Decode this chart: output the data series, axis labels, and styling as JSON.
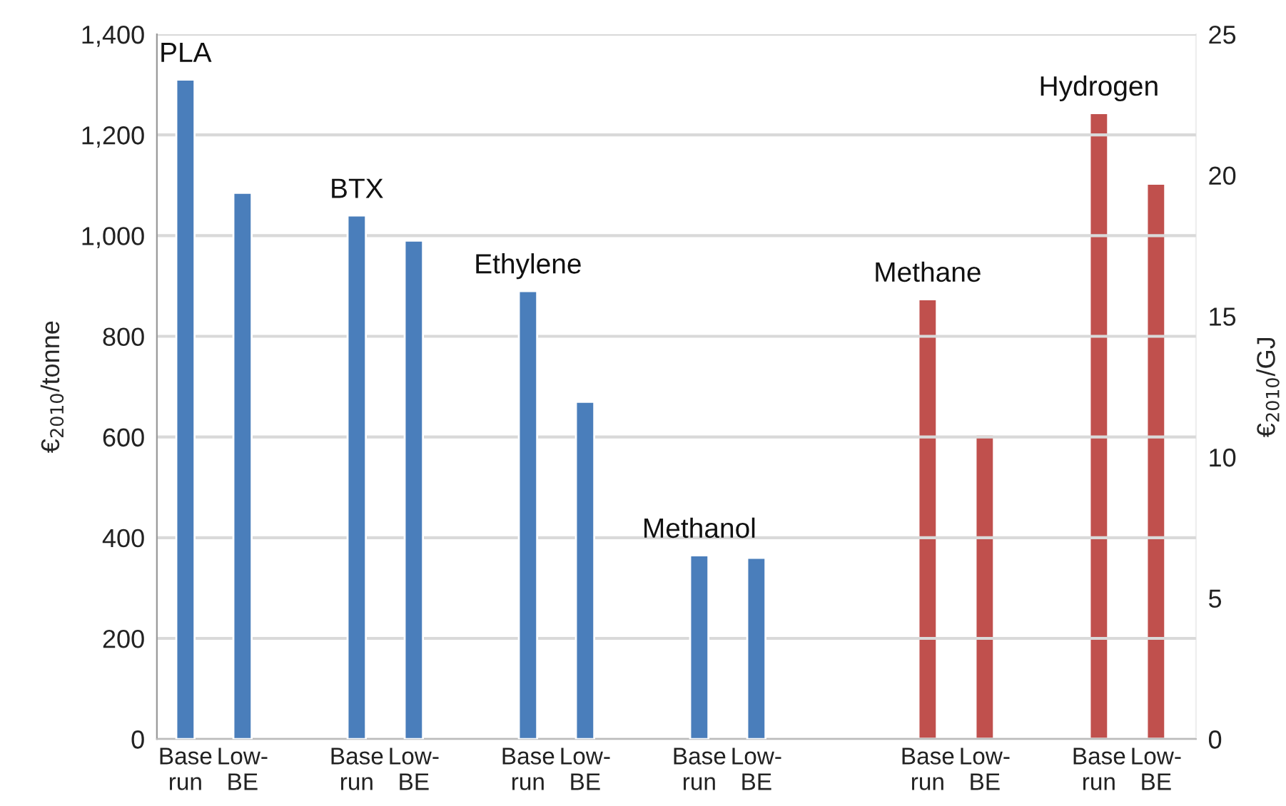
{
  "chart_data": {
    "type": "bar",
    "ylabel": "€$_{2010}$/tonne",
    "y2label": "€$_{2010}$/GJ",
    "categories": [
      "Base\nrun",
      "Low-\nBE",
      null,
      "Base\nrun",
      "Low-\nBE",
      null,
      "Base\nrun",
      "Low-\nBE",
      null,
      "Base\nrun",
      "Low-\nBE",
      null,
      null,
      "Base\nrun",
      "Low-\nBE",
      null,
      "Base\nrun",
      "Low-\nBE"
    ],
    "series": [
      {
        "color": "#4a7ebb",
        "values": [
          1310,
          1085,
          null,
          1040,
          990,
          null,
          890,
          670,
          null,
          365,
          360,
          null,
          null,
          null,
          null,
          null,
          null,
          null
        ]
      },
      {
        "color": "#c0504d",
        "axis": "y2",
        "values": [
          null,
          null,
          null,
          null,
          null,
          null,
          null,
          null,
          null,
          null,
          null,
          null,
          null,
          15.6,
          10.8,
          null,
          22.2,
          19.7
        ]
      }
    ],
    "ylim": [
      0,
      1400
    ],
    "yticks": [
      0,
      200,
      400,
      600,
      800,
      {
        "value": 1000,
        "label": "1,000"
      },
      {
        "value": 1200,
        "label": "1,200"
      },
      {
        "value": 1400,
        "label": "1,400"
      }
    ],
    "y2lim": [
      0,
      25
    ],
    "y2ticks": [
      0,
      5,
      10,
      15,
      20,
      25
    ],
    "annotations": [
      "PLA",
      "BTX",
      "Ethylene",
      "Methanol",
      "Methane",
      "Hydrogen"
    ],
    "grid": "y",
    "legend": false
  }
}
